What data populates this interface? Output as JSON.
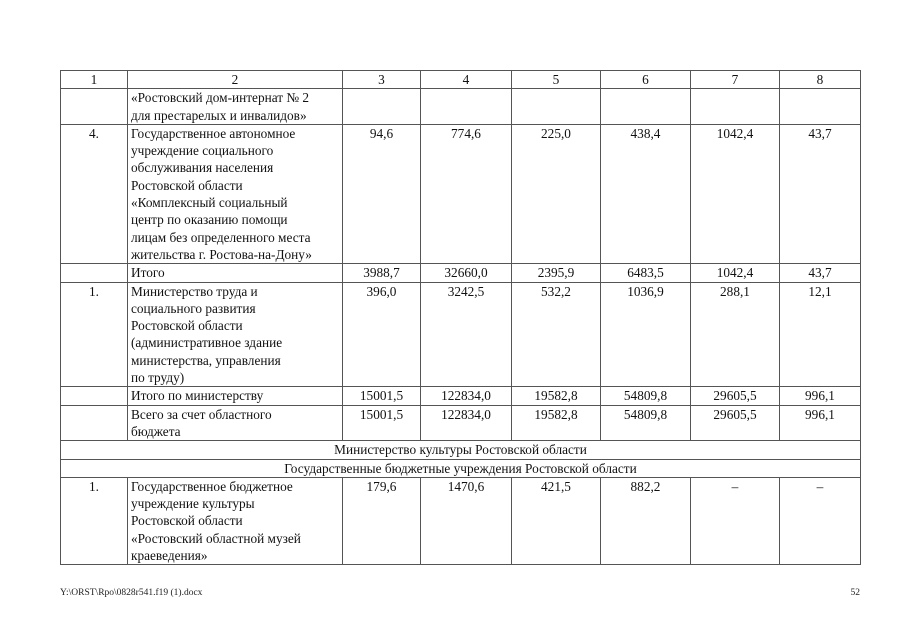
{
  "table": {
    "header": [
      "1",
      "2",
      "3",
      "4",
      "5",
      "6",
      "7",
      "8"
    ],
    "rows": [
      {
        "kind": "data",
        "cells": [
          "",
          "«Ростовский дом-интернат № 2\nдля престарелых и инвалидов»",
          "",
          "",
          "",
          "",
          "",
          ""
        ]
      },
      {
        "kind": "data",
        "cells": [
          "4.",
          "Государственное автономное\nучреждение социального\nобслуживания населения\nРостовской области\n«Комплексный социальный\nцентр по оказанию помощи\nлицам без определенного места\nжительства г. Ростова-на-Дону»",
          "94,6",
          "774,6",
          "225,0",
          "438,4",
          "1042,4",
          "43,7"
        ]
      },
      {
        "kind": "total",
        "cells": [
          "",
          "Итого",
          "3988,7",
          "32660,0",
          "2395,9",
          "6483,5",
          "1042,4",
          "43,7"
        ]
      },
      {
        "kind": "data",
        "cells": [
          "1.",
          "Министерство труда и\nсоциального развития\nРостовской области\n(административное здание\nминистерства, управления\nпо труду)",
          "396,0",
          "3242,5",
          "532,2",
          "1036,9",
          "288,1",
          "12,1"
        ]
      },
      {
        "kind": "total",
        "cells": [
          "",
          "Итого по министерству",
          "15001,5",
          "122834,0",
          "19582,8",
          "54809,8",
          "29605,5",
          "996,1"
        ]
      },
      {
        "kind": "total",
        "cells": [
          "",
          "Всего за счет областного\nбюджета",
          "15001,5",
          "122834,0",
          "19582,8",
          "54809,8",
          "29605,5",
          "996,1"
        ]
      },
      {
        "kind": "section",
        "text": "Министерство культуры Ростовской области"
      },
      {
        "kind": "section",
        "text": "Государственные бюджетные учреждения Ростовской области"
      },
      {
        "kind": "data",
        "cells": [
          "1.",
          "Государственное бюджетное\nучреждение культуры\nРостовской области\n«Ростовский областной музей\nкраеведения»",
          "179,6",
          "1470,6",
          "421,5",
          "882,2",
          "–",
          "–"
        ]
      }
    ]
  },
  "footer": {
    "file_path": "Y:\\ORST\\Rpo\\0828r541.f19 (1).docx",
    "page_number": "52"
  }
}
